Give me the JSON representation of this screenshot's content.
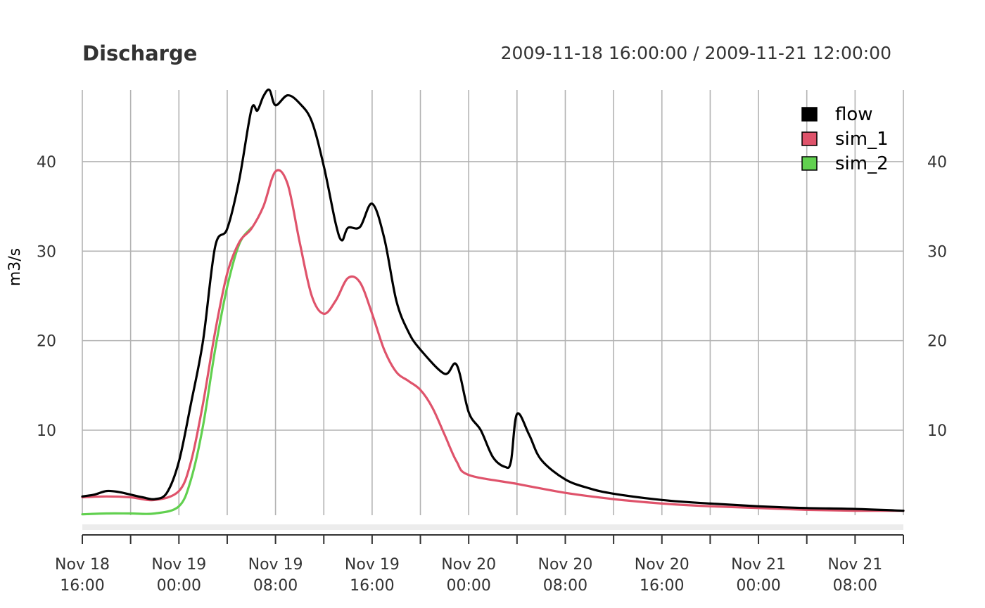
{
  "chart_data": {
    "type": "line",
    "title": "Discharge",
    "subtitle": "2009-11-18 16:00:00 / 2009-11-21 12:00:00",
    "ylabel": "m3/s",
    "xlabel": "",
    "xlim": [
      "2009-11-18 16:00",
      "2009-11-21 12:00"
    ],
    "ylim": [
      0.5,
      48
    ],
    "grid": true,
    "legend": "top-right",
    "y_ticks": [
      10,
      20,
      30,
      40
    ],
    "y_tick_labels": [
      "10",
      "20",
      "30",
      "40"
    ],
    "x_ticks": [
      {
        "time": "2009-11-18 16:00",
        "label": "Nov 18\n16:00"
      },
      {
        "time": "2009-11-19 00:00",
        "label": "Nov 19\n00:00"
      },
      {
        "time": "2009-11-19 08:00",
        "label": "Nov 19\n08:00"
      },
      {
        "time": "2009-11-19 16:00",
        "label": "Nov 19\n16:00"
      },
      {
        "time": "2009-11-20 00:00",
        "label": "Nov 20\n00:00"
      },
      {
        "time": "2009-11-20 08:00",
        "label": "Nov 20\n08:00"
      },
      {
        "time": "2009-11-20 16:00",
        "label": "Nov 20\n16:00"
      },
      {
        "time": "2009-11-21 00:00",
        "label": "Nov 21\n00:00"
      },
      {
        "time": "2009-11-21 08:00",
        "label": "Nov 21\n08:00"
      }
    ],
    "minor_x_ticks": [
      "2009-11-18 20:00",
      "2009-11-19 04:00",
      "2009-11-19 12:00",
      "2009-11-19 20:00",
      "2009-11-20 04:00",
      "2009-11-20 12:00",
      "2009-11-20 20:00",
      "2009-11-21 04:00",
      "2009-11-21 12:00"
    ],
    "series": [
      {
        "name": "flow",
        "color": "#000000",
        "points": [
          [
            "2009-11-18 16:00",
            2.6
          ],
          [
            "2009-11-18 17:00",
            2.8
          ],
          [
            "2009-11-18 18:00",
            3.2
          ],
          [
            "2009-11-18 19:00",
            3.1
          ],
          [
            "2009-11-18 20:00",
            2.8
          ],
          [
            "2009-11-18 21:00",
            2.5
          ],
          [
            "2009-11-18 22:00",
            2.3
          ],
          [
            "2009-11-18 23:00",
            3.0
          ],
          [
            "2009-11-19 00:00",
            6.5
          ],
          [
            "2009-11-19 01:00",
            13.0
          ],
          [
            "2009-11-19 02:00",
            20.0
          ],
          [
            "2009-11-19 03:00",
            30.5
          ],
          [
            "2009-11-19 04:00",
            32.5
          ],
          [
            "2009-11-19 05:00",
            38.0
          ],
          [
            "2009-11-19 06:00",
            45.8
          ],
          [
            "2009-11-19 06:30",
            45.7
          ],
          [
            "2009-11-19 07:00",
            47.3
          ],
          [
            "2009-11-19 07:30",
            48.0
          ],
          [
            "2009-11-19 08:00",
            46.3
          ],
          [
            "2009-11-19 09:00",
            47.4
          ],
          [
            "2009-11-19 10:00",
            46.5
          ],
          [
            "2009-11-19 11:00",
            44.5
          ],
          [
            "2009-11-19 12:00",
            39.5
          ],
          [
            "2009-11-19 13:00",
            33.0
          ],
          [
            "2009-11-19 13:30",
            31.2
          ],
          [
            "2009-11-19 14:00",
            32.6
          ],
          [
            "2009-11-19 15:00",
            32.7
          ],
          [
            "2009-11-19 16:00",
            35.3
          ],
          [
            "2009-11-19 17:00",
            31.5
          ],
          [
            "2009-11-19 18:00",
            24.5
          ],
          [
            "2009-11-19 19:00",
            21.0
          ],
          [
            "2009-11-19 20:00",
            19.0
          ],
          [
            "2009-11-19 22:00",
            16.3
          ],
          [
            "2009-11-19 23:00",
            17.3
          ],
          [
            "2009-11-20 00:00",
            12.0
          ],
          [
            "2009-11-20 01:00",
            10.0
          ],
          [
            "2009-11-20 02:00",
            7.0
          ],
          [
            "2009-11-20 03:00",
            5.9
          ],
          [
            "2009-11-20 03:30",
            6.5
          ],
          [
            "2009-11-20 04:00",
            11.8
          ],
          [
            "2009-11-20 05:00",
            9.5
          ],
          [
            "2009-11-20 06:00",
            6.7
          ],
          [
            "2009-11-20 08:00",
            4.5
          ],
          [
            "2009-11-20 10:00",
            3.5
          ],
          [
            "2009-11-20 12:00",
            2.9
          ],
          [
            "2009-11-20 16:00",
            2.2
          ],
          [
            "2009-11-20 20:00",
            1.8
          ],
          [
            "2009-11-21 00:00",
            1.5
          ],
          [
            "2009-11-21 04:00",
            1.3
          ],
          [
            "2009-11-21 08:00",
            1.2
          ],
          [
            "2009-11-21 12:00",
            1.0
          ]
        ]
      },
      {
        "name": "sim_1",
        "color": "#DF536B",
        "points": [
          [
            "2009-11-18 16:00",
            2.5
          ],
          [
            "2009-11-18 18:00",
            2.6
          ],
          [
            "2009-11-18 20:00",
            2.5
          ],
          [
            "2009-11-18 22:00",
            2.2
          ],
          [
            "2009-11-19 00:00",
            3.2
          ],
          [
            "2009-11-19 01:00",
            6.5
          ],
          [
            "2009-11-19 02:00",
            13.0
          ],
          [
            "2009-11-19 03:00",
            21.0
          ],
          [
            "2009-11-19 04:00",
            27.5
          ],
          [
            "2009-11-19 05:00",
            31.0
          ],
          [
            "2009-11-19 06:00",
            32.5
          ],
          [
            "2009-11-19 07:00",
            35.0
          ],
          [
            "2009-11-19 08:00",
            38.9
          ],
          [
            "2009-11-19 09:00",
            37.5
          ],
          [
            "2009-11-19 10:00",
            31.0
          ],
          [
            "2009-11-19 11:00",
            25.0
          ],
          [
            "2009-11-19 12:00",
            23.0
          ],
          [
            "2009-11-19 13:00",
            24.5
          ],
          [
            "2009-11-19 14:00",
            27.0
          ],
          [
            "2009-11-19 15:00",
            26.5
          ],
          [
            "2009-11-19 16:00",
            23.0
          ],
          [
            "2009-11-19 17:00",
            19.0
          ],
          [
            "2009-11-19 18:00",
            16.5
          ],
          [
            "2009-11-19 19:00",
            15.5
          ],
          [
            "2009-11-19 20:00",
            14.5
          ],
          [
            "2009-11-19 21:00",
            12.5
          ],
          [
            "2009-11-19 22:00",
            9.5
          ],
          [
            "2009-11-19 23:00",
            6.5
          ],
          [
            "2009-11-20 00:00",
            5.0
          ],
          [
            "2009-11-20 04:00",
            4.0
          ],
          [
            "2009-11-20 08:00",
            3.0
          ],
          [
            "2009-11-20 12:00",
            2.3
          ],
          [
            "2009-11-20 16:00",
            1.8
          ],
          [
            "2009-11-20 20:00",
            1.5
          ],
          [
            "2009-11-21 00:00",
            1.3
          ],
          [
            "2009-11-21 04:00",
            1.1
          ],
          [
            "2009-11-21 08:00",
            1.0
          ],
          [
            "2009-11-21 12:00",
            1.0
          ]
        ]
      },
      {
        "name": "sim_2",
        "color": "#61D04F",
        "points": [
          [
            "2009-11-18 16:00",
            0.6
          ],
          [
            "2009-11-18 18:00",
            0.7
          ],
          [
            "2009-11-18 20:00",
            0.7
          ],
          [
            "2009-11-18 22:00",
            0.7
          ],
          [
            "2009-11-19 00:00",
            1.5
          ],
          [
            "2009-11-19 01:00",
            4.5
          ],
          [
            "2009-11-19 02:00",
            10.5
          ],
          [
            "2009-11-19 03:00",
            19.0
          ],
          [
            "2009-11-19 04:00",
            26.0
          ],
          [
            "2009-11-19 05:00",
            30.8
          ],
          [
            "2009-11-19 06:00",
            32.6
          ]
        ]
      }
    ]
  }
}
